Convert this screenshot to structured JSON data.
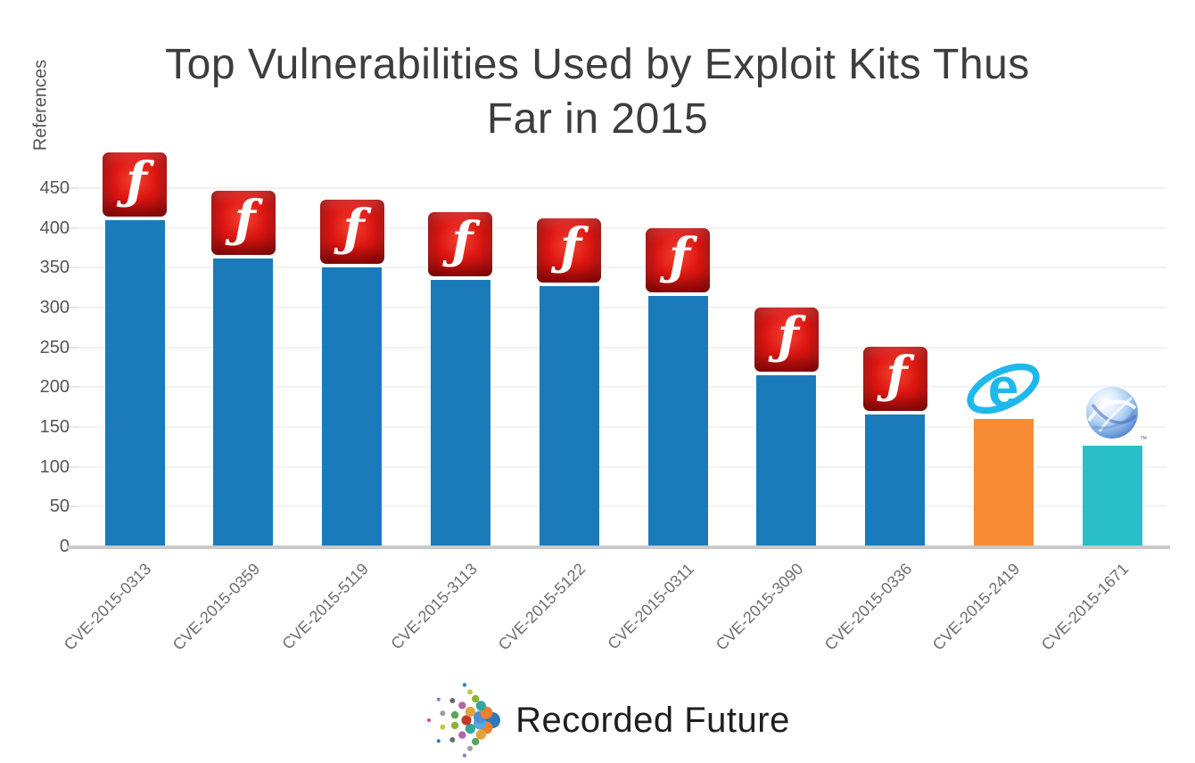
{
  "chart_data": {
    "type": "bar",
    "title": "Top Vulnerabilities Used by Exploit Kits Thus Far in 2015",
    "title_lines": [
      "Top Vulnerabilities Used by Exploit Kits Thus",
      "Far in 2015"
    ],
    "ylabel": "References",
    "xlabel": "",
    "ylim": [
      0,
      500
    ],
    "yticks": [
      0,
      50,
      100,
      150,
      200,
      250,
      300,
      350,
      400,
      450
    ],
    "grid": true,
    "legend": false,
    "categories": [
      "CVE-2015-0313",
      "CVE-2015-0359",
      "CVE-2015-5119",
      "CVE-2015-3113",
      "CVE-2015-5122",
      "CVE-2015-0311",
      "CVE-2015-3090",
      "CVE-2015-0336",
      "CVE-2015-2419",
      "CVE-2015-1671"
    ],
    "values": [
      410,
      362,
      350,
      335,
      327,
      314,
      215,
      166,
      160,
      126
    ],
    "bar_colors": [
      "#1B7BBA",
      "#1B7BBA",
      "#1B7BBA",
      "#1B7BBA",
      "#1B7BBA",
      "#1B7BBA",
      "#1B7BBA",
      "#1B7BBA",
      "#F68B33",
      "#2ABFC8"
    ],
    "bar_icons": [
      "flash-player-icon",
      "flash-player-icon",
      "flash-player-icon",
      "flash-player-icon",
      "flash-player-icon",
      "flash-player-icon",
      "flash-player-icon",
      "flash-player-icon",
      "internet-explorer-icon",
      "silverlight-icon"
    ],
    "silverlight_trademark": "™"
  },
  "colors": {
    "flash_bar": "#1B7BBA",
    "ie_bar": "#F68B33",
    "silverlight_bar": "#2ABFC8",
    "ie_logo_blue": "#1EB8EC",
    "flash_icon_red": "#E01712",
    "gridline": "#F2F2F2",
    "axis_line": "#C9C9C9",
    "tick_text": "#555555",
    "x_label_text": "#6E6E6E",
    "title_text": "#3D3D3D"
  },
  "footer": {
    "brand": "Recorded Future",
    "logo_dot_palette": [
      "#2E79BE",
      "#4A90D9",
      "#35A79C",
      "#8CB23B",
      "#C3C93B",
      "#D4539B",
      "#EE7F2D",
      "#C0392B",
      "#58A55C",
      "#9E9E9E",
      "#8E7CC3",
      "#5BA8D9",
      "#E2A33C",
      "#B565A7",
      "#6B6B6B"
    ]
  }
}
